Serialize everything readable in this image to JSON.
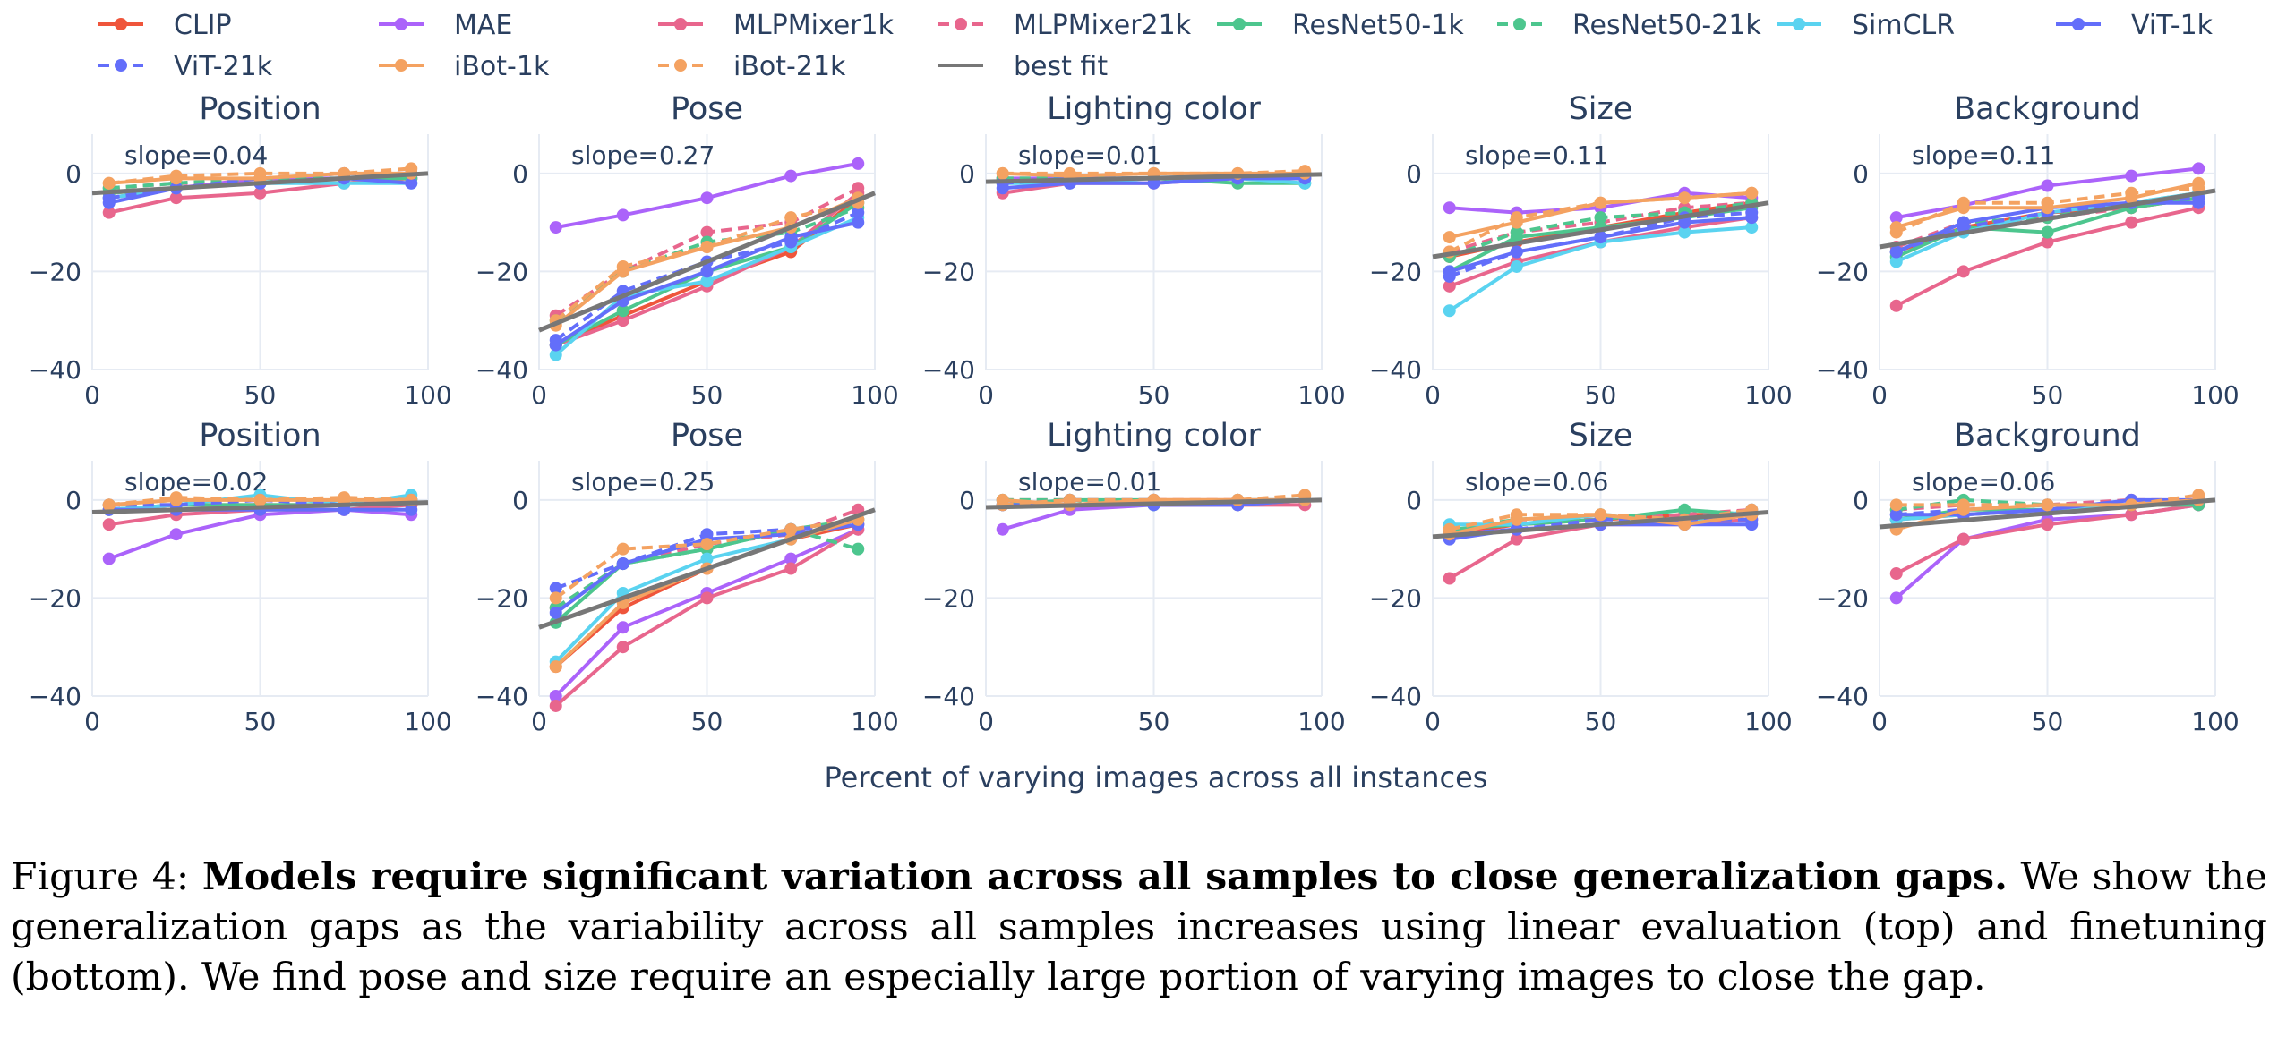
{
  "chart_data": {
    "type": "line",
    "xlabel": "Percent of varying images across all instances",
    "x": [
      5,
      25,
      50,
      75,
      95
    ],
    "xlim": [
      0,
      100
    ],
    "ylim": [
      -40,
      8
    ],
    "xticks": [
      0,
      50,
      100
    ],
    "yticks": [
      0,
      -20,
      -40
    ],
    "grid": true,
    "legend_position": "top",
    "series_styles": [
      {
        "name": "CLIP",
        "color": "#EF553B",
        "dash": false
      },
      {
        "name": "MAE",
        "color": "#AB63FA",
        "dash": false
      },
      {
        "name": "MLPMixer1k",
        "color": "#E8668D",
        "dash": false
      },
      {
        "name": "MLPMixer21k",
        "color": "#E8668D",
        "dash": true
      },
      {
        "name": "ResNet50-1k",
        "color": "#4DC68E",
        "dash": false
      },
      {
        "name": "ResNet50-21k",
        "color": "#4DC68E",
        "dash": true
      },
      {
        "name": "SimCLR",
        "color": "#5AD3F0",
        "dash": false
      },
      {
        "name": "ViT-1k",
        "color": "#636EFA",
        "dash": false
      },
      {
        "name": "ViT-21k",
        "color": "#636EFA",
        "dash": true
      },
      {
        "name": "iBot-1k",
        "color": "#F4A261",
        "dash": false
      },
      {
        "name": "iBot-21k",
        "color": "#F4A261",
        "dash": true
      },
      {
        "name": "best fit",
        "color": "#777777",
        "dash": false,
        "fit": true
      }
    ],
    "panels": [
      {
        "title": "Position",
        "slope_label": "slope=0.04",
        "fit": [
          -4,
          0
        ],
        "series": {
          "CLIP": [
            -4,
            -3,
            -2,
            -1,
            0
          ],
          "MAE": [
            -5,
            -3,
            -1,
            -1,
            -1
          ],
          "MLPMixer1k": [
            -8,
            -5,
            -4,
            -2,
            -1
          ],
          "MLPMixer21k": [
            -3,
            -2,
            -2,
            -1,
            0
          ],
          "ResNet50-1k": [
            -4,
            -3,
            -2,
            -1,
            -1
          ],
          "ResNet50-21k": [
            -3,
            -2,
            -1,
            -1,
            0
          ],
          "SimCLR": [
            -5,
            -3,
            -2,
            -2,
            -2
          ],
          "ViT-1k": [
            -6,
            -3,
            -2,
            -1,
            -2
          ],
          "ViT-21k": [
            -5,
            -3,
            -1,
            0,
            0
          ],
          "iBot-1k": [
            -2,
            -1,
            -1,
            0,
            0
          ],
          "iBot-21k": [
            -2,
            -0.5,
            0,
            0,
            1
          ]
        }
      },
      {
        "title": "Pose",
        "slope_label": "slope=0.27",
        "fit": [
          -32,
          -4
        ],
        "series": {
          "CLIP": [
            -35,
            -29,
            -22,
            -16,
            -5
          ],
          "MAE": [
            -11,
            -8.5,
            -5,
            -0.5,
            2
          ],
          "MLPMixer1k": [
            -35,
            -30,
            -23,
            -15,
            -4
          ],
          "MLPMixer21k": [
            -29,
            -20,
            -12,
            -10,
            -3
          ],
          "ResNet50-1k": [
            -35,
            -28,
            -20,
            -15,
            -6
          ],
          "ResNet50-21k": [
            -30,
            -20,
            -14,
            -12,
            -7
          ],
          "SimCLR": [
            -37,
            -25,
            -22,
            -15,
            -9
          ],
          "ViT-1k": [
            -35,
            -26,
            -20,
            -13,
            -10
          ],
          "ViT-21k": [
            -34,
            -24,
            -18,
            -14,
            -8
          ],
          "iBot-1k": [
            -31,
            -20,
            -15,
            -11,
            -5
          ],
          "iBot-21k": [
            -30,
            -19,
            -15,
            -9,
            -6
          ]
        }
      },
      {
        "title": "Lighting color",
        "slope_label": "slope=0.01",
        "fit": [
          -1.7,
          -0.2
        ],
        "series": {
          "CLIP": [
            -2,
            -1,
            -1,
            -1,
            -0.5
          ],
          "MAE": [
            -1,
            -1,
            -1,
            -1,
            -1
          ],
          "MLPMixer1k": [
            -4,
            -2,
            -2,
            -1,
            -1
          ],
          "MLPMixer21k": [
            -1,
            -1,
            -1,
            -0.5,
            0
          ],
          "ResNet50-1k": [
            -2,
            -1,
            -1,
            -2,
            -2
          ],
          "ResNet50-21k": [
            -1,
            -1,
            -1,
            -1,
            -1
          ],
          "SimCLR": [
            -2,
            -2,
            -1,
            -1,
            -2
          ],
          "ViT-1k": [
            -3,
            -2,
            -2,
            -1,
            -1
          ],
          "ViT-21k": [
            -2,
            -1,
            -1,
            -1,
            0
          ],
          "iBot-1k": [
            0,
            -0.5,
            0,
            0,
            0
          ],
          "iBot-21k": [
            0,
            0,
            0,
            0,
            0.5
          ]
        }
      },
      {
        "title": "Size",
        "slope_label": "slope=0.11",
        "fit": [
          -17,
          -6
        ],
        "series": {
          "CLIP": [
            -17,
            -14,
            -11,
            -8,
            -6
          ],
          "MAE": [
            -7,
            -8,
            -7,
            -4,
            -5
          ],
          "MLPMixer1k": [
            -23,
            -18,
            -14,
            -11,
            -9
          ],
          "MLPMixer21k": [
            -16,
            -12,
            -10,
            -7,
            -6
          ],
          "ResNet50-1k": [
            -20,
            -13,
            -11,
            -9,
            -7
          ],
          "ResNet50-21k": [
            -17,
            -12,
            -9,
            -8,
            -6
          ],
          "SimCLR": [
            -28,
            -19,
            -14,
            -12,
            -11
          ],
          "ViT-1k": [
            -20,
            -16,
            -13,
            -10,
            -9
          ],
          "ViT-21k": [
            -21,
            -16,
            -13,
            -9,
            -8
          ],
          "iBot-1k": [
            -13,
            -10,
            -6,
            -5,
            -4
          ],
          "iBot-21k": [
            -16,
            -9,
            -6,
            -5,
            -4
          ]
        }
      },
      {
        "title": "Background",
        "slope_label": "slope=0.11",
        "fit": [
          -15,
          -3.5
        ],
        "series": {
          "CLIP": [
            -16,
            -11,
            -8,
            -7,
            -5
          ],
          "MAE": [
            -9,
            -6.5,
            -2.5,
            -0.5,
            1
          ],
          "MLPMixer1k": [
            -27,
            -20,
            -14,
            -10,
            -7
          ],
          "MLPMixer21k": [
            -15,
            -10,
            -9,
            -7,
            -5
          ],
          "ResNet50-1k": [
            -17,
            -11,
            -12,
            -7,
            -5
          ],
          "ResNet50-21k": [
            -16,
            -10,
            -9,
            -6,
            -4
          ],
          "SimCLR": [
            -18,
            -12,
            -8,
            -6,
            -4
          ],
          "ViT-1k": [
            -16,
            -10,
            -7,
            -6,
            -6
          ],
          "ViT-21k": [
            -16,
            -11,
            -8,
            -6,
            -5
          ],
          "iBot-1k": [
            -11,
            -7,
            -7,
            -5,
            -2
          ],
          "iBot-21k": [
            -12,
            -6,
            -6,
            -4,
            -3
          ]
        }
      },
      {
        "title": "Position",
        "slope_label": "slope=0.02",
        "fit": [
          -2.5,
          -0.5
        ],
        "series": {
          "CLIP": [
            -2,
            -1,
            -1,
            -1,
            -1
          ],
          "MAE": [
            -12,
            -7,
            -3,
            -2,
            -3
          ],
          "MLPMixer1k": [
            -5,
            -3,
            -2,
            -2,
            -1
          ],
          "MLPMixer21k": [
            -1,
            -1,
            -1,
            -1,
            0
          ],
          "ResNet50-1k": [
            -2,
            -1,
            -1,
            -1,
            0
          ],
          "ResNet50-21k": [
            -1,
            0,
            0,
            0,
            0
          ],
          "SimCLR": [
            -2,
            -1,
            1,
            -1,
            1
          ],
          "ViT-1k": [
            -2,
            -2,
            -2,
            -2,
            -2
          ],
          "ViT-21k": [
            -1,
            -1,
            0,
            -1,
            0
          ],
          "iBot-1k": [
            -1,
            0,
            0,
            0,
            0
          ],
          "iBot-21k": [
            -1,
            0.5,
            0,
            0.5,
            0
          ]
        }
      },
      {
        "title": "Pose",
        "slope_label": "slope=0.25",
        "fit": [
          -26,
          -2
        ],
        "series": {
          "CLIP": [
            -34,
            -22,
            -14,
            -8,
            -5
          ],
          "MAE": [
            -40,
            -26,
            -19,
            -12,
            -6
          ],
          "MLPMixer1k": [
            -42,
            -30,
            -20,
            -14,
            -6
          ],
          "MLPMixer21k": [
            -22,
            -13,
            -9,
            -7,
            -2
          ],
          "ResNet50-1k": [
            -25,
            -13,
            -10,
            -6,
            -4
          ],
          "ResNet50-21k": [
            -22,
            -13,
            -10,
            -6,
            -10
          ],
          "SimCLR": [
            -33,
            -19,
            -12,
            -8,
            -4
          ],
          "ViT-1k": [
            -23,
            -13,
            -8,
            -7,
            -5
          ],
          "ViT-21k": [
            -18,
            -13,
            -7,
            -6,
            -5
          ],
          "iBot-1k": [
            -34,
            -21,
            -14,
            -8,
            -4
          ],
          "iBot-21k": [
            -20,
            -10,
            -9,
            -6,
            -4
          ]
        }
      },
      {
        "title": "Lighting color",
        "slope_label": "slope=0.01",
        "fit": [
          -1.5,
          0
        ],
        "series": {
          "CLIP": [
            -1,
            -1,
            0,
            0,
            0
          ],
          "MAE": [
            -6,
            -2,
            -1,
            -1,
            0
          ],
          "MLPMixer1k": [
            -1,
            -1,
            -1,
            -1,
            -1
          ],
          "MLPMixer21k": [
            0,
            0,
            0,
            0,
            0
          ],
          "ResNet50-1k": [
            -1,
            0,
            0,
            -1,
            0
          ],
          "ResNet50-21k": [
            0,
            0,
            -1,
            0,
            0
          ],
          "SimCLR": [
            -1,
            -1,
            -1,
            0,
            0
          ],
          "ViT-1k": [
            -1,
            -1,
            -1,
            -1,
            0
          ],
          "ViT-21k": [
            -1,
            0,
            0,
            -1,
            0
          ],
          "iBot-1k": [
            0,
            -1,
            0,
            0,
            0
          ],
          "iBot-21k": [
            -1,
            0,
            0,
            0,
            1
          ]
        }
      },
      {
        "title": "Size",
        "slope_label": "slope=0.06",
        "fit": [
          -7.5,
          -2.5
        ],
        "series": {
          "CLIP": [
            -7,
            -5,
            -4,
            -3,
            -3
          ],
          "MAE": [
            -7,
            -6,
            -5,
            -4,
            -3
          ],
          "MLPMixer1k": [
            -16,
            -8,
            -5,
            -5,
            -4
          ],
          "MLPMixer21k": [
            -7,
            -4,
            -4,
            -3,
            -2
          ],
          "ResNet50-1k": [
            -6,
            -5,
            -4,
            -2,
            -3
          ],
          "ResNet50-21k": [
            -6,
            -4,
            -3,
            -4,
            -3
          ],
          "SimCLR": [
            -5,
            -5,
            -3,
            -5,
            -2
          ],
          "ViT-1k": [
            -8,
            -6,
            -5,
            -5,
            -5
          ],
          "ViT-21k": [
            -7,
            -6,
            -4,
            -4,
            -4
          ],
          "iBot-1k": [
            -7,
            -4,
            -3,
            -5,
            -3
          ],
          "iBot-21k": [
            -6,
            -3,
            -3,
            -4,
            -2
          ]
        }
      },
      {
        "title": "Background",
        "slope_label": "slope=0.06",
        "fit": [
          -5.5,
          0
        ],
        "series": {
          "CLIP": [
            -4,
            -3,
            -2,
            -1,
            -1
          ],
          "MAE": [
            -20,
            -8,
            -4,
            -3,
            -1
          ],
          "MLPMixer1k": [
            -15,
            -8,
            -5,
            -3,
            -1
          ],
          "MLPMixer21k": [
            -2,
            -1,
            -1,
            0,
            0
          ],
          "ResNet50-1k": [
            -4,
            -2,
            -2,
            -1,
            -1
          ],
          "ResNet50-21k": [
            -2,
            0,
            -1,
            -1,
            0
          ],
          "SimCLR": [
            -4,
            -3,
            -2,
            -1,
            0
          ],
          "ViT-1k": [
            -3,
            -3,
            -2,
            0,
            0
          ],
          "ViT-21k": [
            -3,
            -2,
            -1,
            -1,
            0
          ],
          "iBot-1k": [
            -6,
            -2,
            -1,
            -1,
            0
          ],
          "iBot-21k": [
            -1,
            -1,
            -1,
            -1,
            1
          ]
        }
      }
    ]
  },
  "caption": {
    "label": "Figure 4: ",
    "bold": "Models require significant variation across all samples to close generalization gaps.",
    "rest": " We show the generalization gaps as the variability across all samples increases using linear evaluation (top) and finetuning (bottom). We find pose and size require an especially large portion of varying images to close the gap."
  }
}
